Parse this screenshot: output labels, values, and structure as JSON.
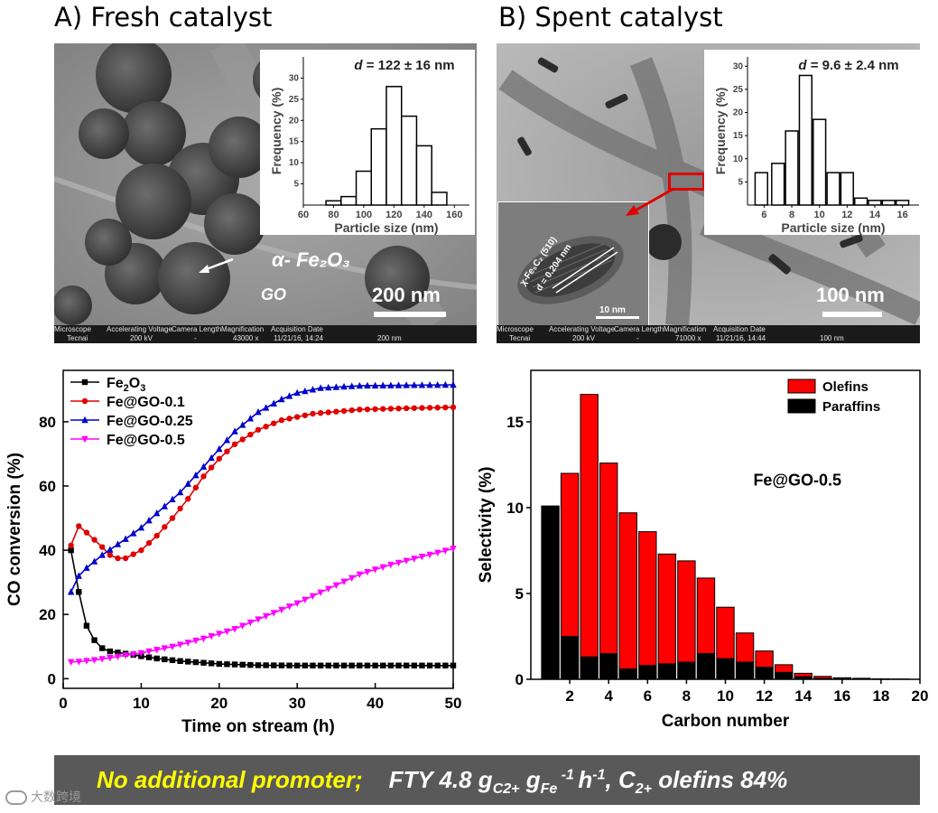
{
  "panels": {
    "a": {
      "title": "A) Fresh catalyst",
      "label_phase": "α- Fe₂O₃",
      "label_support": "GO",
      "scale_text": "200 nm",
      "meta_headers": [
        "Microscope",
        "Accelerating Voltage",
        "Camera Length",
        "Magnification",
        "Acquisition Date"
      ],
      "meta_values": [
        "Tecnai",
        "200 kV",
        "-",
        "43000 x",
        "11/21/16, 14:24",
        "200 nm"
      ]
    },
    "b": {
      "title": "B) Spent catalyst",
      "scale_text": "100 nm",
      "hrtem_label_phase": "χ-Fe₅C₂ (510)",
      "hrtem_label_d": "d = 0.204 nm",
      "hrtem_scale": "10 nm",
      "meta_headers": [
        "Microscope",
        "Accelerating Voltage",
        "Camera Length",
        "Magnification",
        "Acquisition Date"
      ],
      "meta_values": [
        "Tecnai",
        "200 kV",
        "-",
        "71000 x",
        "11/21/16, 14:44",
        "100 nm"
      ]
    }
  },
  "caption": {
    "highlight": "No additional promoter;",
    "rest_prefix": "FTY  4.8 g",
    "sub1": "C2+",
    "g2": " g",
    "sub2": "Fe",
    "sup1": " -1 ",
    "h": "h",
    "sup2": "-1",
    "rest_suffix1": ", C",
    "sub3": "2+",
    "rest_suffix2": " olefins  84%"
  },
  "watermark": "大数跨境",
  "chart_data": [
    {
      "id": "hist_fresh",
      "type": "bar",
      "title": "d = 122 ± 16 nm",
      "xlabel": "Particle size (nm)",
      "ylabel": "Frequency (%)",
      "xlim": [
        60,
        170
      ],
      "ylim": [
        0,
        35
      ],
      "xticks": [
        60,
        80,
        100,
        120,
        140,
        160
      ],
      "yticks": [
        5,
        10,
        15,
        20,
        25,
        30
      ],
      "bin_width": 10,
      "bin_centers": [
        80,
        90,
        100,
        110,
        120,
        130,
        140,
        150
      ],
      "values": [
        1,
        2,
        8,
        18,
        28,
        21,
        14,
        3
      ]
    },
    {
      "id": "hist_spent",
      "type": "bar",
      "title": "d = 9.6 ± 2.4 nm",
      "xlabel": "Particle size (nm)",
      "ylabel": "Frequency (%)",
      "xlim": [
        4.8,
        17.2
      ],
      "ylim": [
        0,
        32
      ],
      "xticks": [
        6,
        8,
        10,
        12,
        14,
        16
      ],
      "yticks": [
        5,
        10,
        15,
        20,
        25,
        30
      ],
      "bin_width": 0.9,
      "bin_centers": [
        5.8,
        7.0,
        8.0,
        9.0,
        10.0,
        11.0,
        12.0,
        13.0,
        14.0,
        15.0,
        16.0
      ],
      "values": [
        7,
        9,
        16,
        28,
        18.5,
        7,
        7,
        1.5,
        1,
        1,
        1
      ]
    },
    {
      "id": "co_conversion",
      "type": "line",
      "xlabel": "Time on stream (h)",
      "ylabel": "CO conversion (%)",
      "xlim": [
        0,
        50
      ],
      "ylim": [
        -3,
        96
      ],
      "xticks": [
        0,
        10,
        20,
        30,
        40,
        50
      ],
      "yticks": [
        0,
        20,
        40,
        60,
        80
      ],
      "series": [
        {
          "name": "Fe₂O₃",
          "color": "#000000",
          "marker": "square",
          "points": [
            [
              1,
              40
            ],
            [
              2,
              27
            ],
            [
              3,
              16.5
            ],
            [
              4,
              12
            ],
            [
              5,
              9.5
            ],
            [
              6,
              8.5
            ],
            [
              8,
              7.8
            ],
            [
              10,
              7
            ],
            [
              12,
              6.3
            ],
            [
              15,
              5.5
            ],
            [
              20,
              4.6
            ],
            [
              25,
              4.2
            ],
            [
              30,
              4.1
            ],
            [
              40,
              4.1
            ],
            [
              50,
              4.1
            ]
          ]
        },
        {
          "name": "Fe@GO-0.1",
          "color": "#e00000",
          "marker": "circle",
          "points": [
            [
              1,
              41.5
            ],
            [
              2,
              47.5
            ],
            [
              3,
              45.5
            ],
            [
              5,
              41
            ],
            [
              6,
              38.5
            ],
            [
              7,
              37.5
            ],
            [
              8,
              37.5
            ],
            [
              10,
              40
            ],
            [
              12,
              44.5
            ],
            [
              14,
              50
            ],
            [
              16,
              56
            ],
            [
              18,
              63
            ],
            [
              20,
              68.5
            ],
            [
              22,
              73
            ],
            [
              25,
              77.5
            ],
            [
              28,
              80.5
            ],
            [
              32,
              82.5
            ],
            [
              38,
              83.8
            ],
            [
              44,
              84.2
            ],
            [
              50,
              84.5
            ]
          ]
        },
        {
          "name": "Fe@GO-0.25",
          "color": "#0000cc",
          "marker": "triangle-up",
          "points": [
            [
              1,
              27
            ],
            [
              2,
              32
            ],
            [
              3,
              34.5
            ],
            [
              5,
              38.5
            ],
            [
              8,
              43.5
            ],
            [
              10,
              47
            ],
            [
              12,
              51.5
            ],
            [
              15,
              58
            ],
            [
              18,
              66
            ],
            [
              20,
              71.5
            ],
            [
              22,
              77
            ],
            [
              25,
              83
            ],
            [
              28,
              87
            ],
            [
              30,
              89
            ],
            [
              33,
              90.5
            ],
            [
              38,
              91.2
            ],
            [
              45,
              91.4
            ],
            [
              50,
              91.5
            ]
          ]
        },
        {
          "name": "Fe@GO-0.5",
          "color": "#ff00ff",
          "marker": "triangle-down",
          "points": [
            [
              1,
              5.2
            ],
            [
              2,
              5.3
            ],
            [
              4,
              5.8
            ],
            [
              6,
              6.5
            ],
            [
              8,
              7.3
            ],
            [
              10,
              8
            ],
            [
              14,
              10
            ],
            [
              18,
              12.5
            ],
            [
              22,
              15.5
            ],
            [
              26,
              19.5
            ],
            [
              30,
              23.5
            ],
            [
              34,
              28
            ],
            [
              38,
              32.5
            ],
            [
              42,
              35.5
            ],
            [
              46,
              38
            ],
            [
              50,
              40.5
            ]
          ]
        }
      ]
    },
    {
      "id": "selectivity",
      "type": "bar",
      "stacked": true,
      "title": "Fe@GO-0.5",
      "xlabel": "Carbon number",
      "ylabel": "Selectivity (%)",
      "xlim": [
        0,
        20
      ],
      "ylim": [
        0,
        18
      ],
      "xticks": [
        2,
        4,
        6,
        8,
        10,
        12,
        14,
        16,
        18,
        20
      ],
      "yticks": [
        0,
        5,
        10,
        15
      ],
      "categories": [
        1,
        2,
        3,
        4,
        5,
        6,
        7,
        8,
        9,
        10,
        11,
        12,
        13,
        14,
        15,
        16,
        17,
        18,
        19
      ],
      "series": [
        {
          "name": "Paraffins",
          "color": "#000000",
          "values": [
            10.1,
            2.5,
            1.3,
            1.5,
            0.6,
            0.8,
            0.9,
            1.0,
            1.5,
            1.2,
            1.0,
            0.7,
            0.4,
            0.15,
            0.05,
            0.03,
            0.02,
            0.01,
            0.0
          ]
        },
        {
          "name": "Olefins",
          "color": "#ff0000",
          "values": [
            0.0,
            9.5,
            15.3,
            11.1,
            9.1,
            7.8,
            6.4,
            5.9,
            4.4,
            3.0,
            1.7,
            0.95,
            0.45,
            0.2,
            0.12,
            0.06,
            0.04,
            0.02,
            0.02
          ]
        }
      ]
    }
  ]
}
